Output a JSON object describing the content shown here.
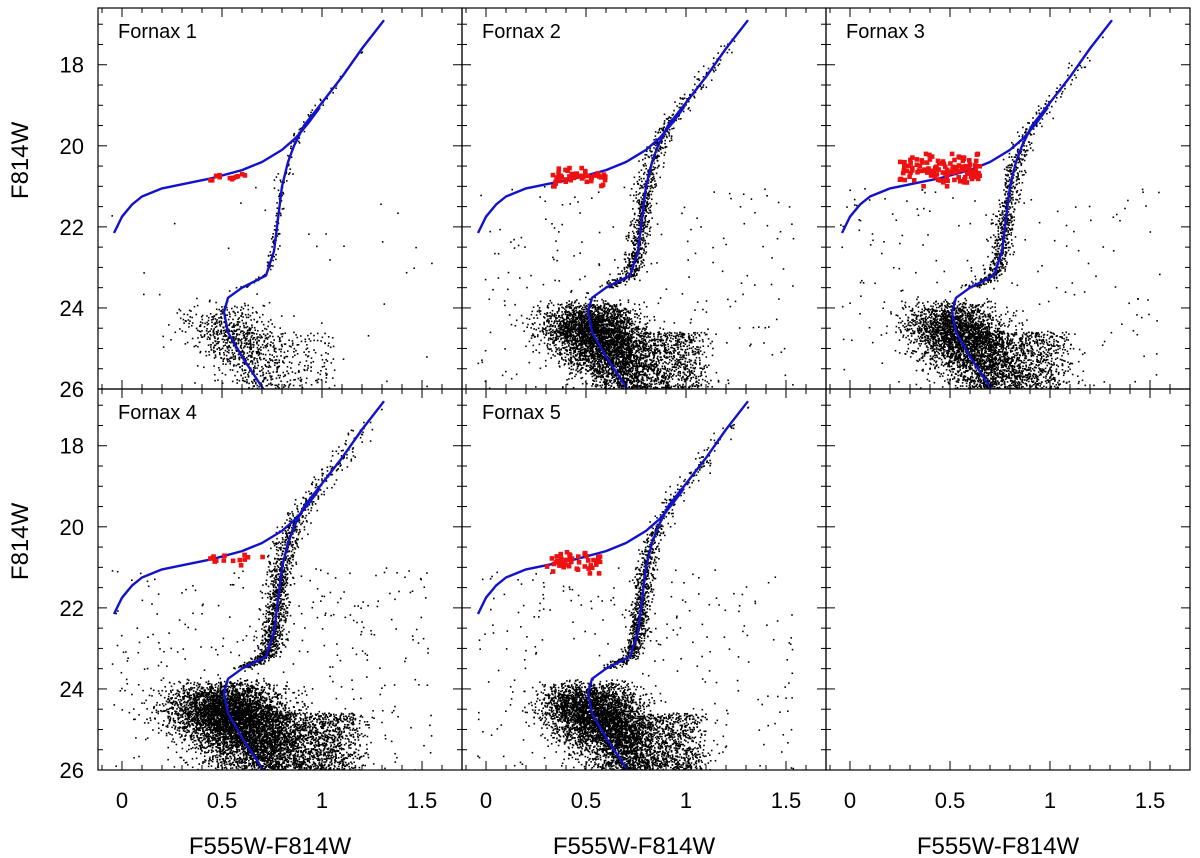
{
  "chart_data": {
    "type": "scatter",
    "title": "",
    "xlabel": "F555W-F814W",
    "ylabel": "F814W",
    "xlim": [
      -0.12,
      1.7
    ],
    "ylim": [
      26,
      16.6
    ],
    "x_ticks": [
      "0",
      "0.5",
      "1",
      "1.5"
    ],
    "x_tick_values": [
      0,
      0.5,
      1,
      1.5
    ],
    "y_ticks": [
      "18",
      "20",
      "22",
      "24",
      "26"
    ],
    "y_tick_values": [
      18,
      20,
      22,
      24,
      26
    ],
    "colors": {
      "isochrone": "#1212cc",
      "rr_lyrae": "#ee1111",
      "stars": "#000000",
      "axes": "#000000"
    },
    "isochrone_rgb": {
      "x": [
        0.72,
        0.6,
        0.53,
        0.51,
        0.53,
        0.6,
        0.72,
        0.76,
        0.78,
        0.8,
        0.83,
        0.86,
        0.91,
        0.99,
        1.1,
        1.2,
        1.31
      ],
      "y": [
        26.1,
        25.2,
        24.6,
        24.1,
        23.75,
        23.5,
        23.2,
        22.6,
        21.8,
        21.0,
        20.4,
        20.0,
        19.5,
        19.0,
        18.3,
        17.6,
        16.9
      ]
    },
    "isochrone_hb": {
      "x": [
        -0.04,
        0.0,
        0.05,
        0.1,
        0.2,
        0.3,
        0.45,
        0.6,
        0.7,
        0.8,
        0.87,
        0.93,
        0.99
      ],
      "y": [
        22.15,
        21.75,
        21.45,
        21.25,
        21.05,
        20.95,
        20.8,
        20.6,
        20.4,
        20.1,
        19.8,
        19.45,
        19.05
      ]
    },
    "panels": [
      {
        "label": "Fornax 1",
        "n_stars": 1200,
        "n_rr": 12,
        "rr_x": [
          0.42,
          0.62
        ],
        "rr_y": [
          20.6,
          20.9
        ],
        "msto_spread": 0.9,
        "rgb_density": 0.6
      },
      {
        "label": "Fornax 2",
        "n_stars": 6000,
        "n_rr": 50,
        "rr_x": [
          0.33,
          0.6
        ],
        "rr_y": [
          20.55,
          21.0
        ],
        "msto_spread": 1.0,
        "rgb_density": 1.0
      },
      {
        "label": "Fornax 3",
        "n_stars": 5000,
        "n_rr": 120,
        "rr_x": [
          0.25,
          0.65
        ],
        "rr_y": [
          20.2,
          21.0
        ],
        "msto_spread": 1.0,
        "rgb_density": 1.0
      },
      {
        "label": "Fornax 4",
        "n_stars": 8500,
        "n_rr": 14,
        "rr_x": [
          0.42,
          0.72
        ],
        "rr_y": [
          20.6,
          20.95
        ],
        "msto_spread": 1.2,
        "rgb_density": 1.2
      },
      {
        "label": "Fornax 5",
        "n_stars": 6500,
        "n_rr": 45,
        "rr_x": [
          0.3,
          0.6
        ],
        "rr_y": [
          20.6,
          21.15
        ],
        "msto_spread": 1.0,
        "rgb_density": 1.0
      },
      {
        "label": "",
        "n_stars": 0,
        "n_rr": 0,
        "rr_x": [
          0,
          0
        ],
        "rr_y": [
          0,
          0
        ],
        "msto_spread": 0,
        "rgb_density": 0
      }
    ]
  }
}
